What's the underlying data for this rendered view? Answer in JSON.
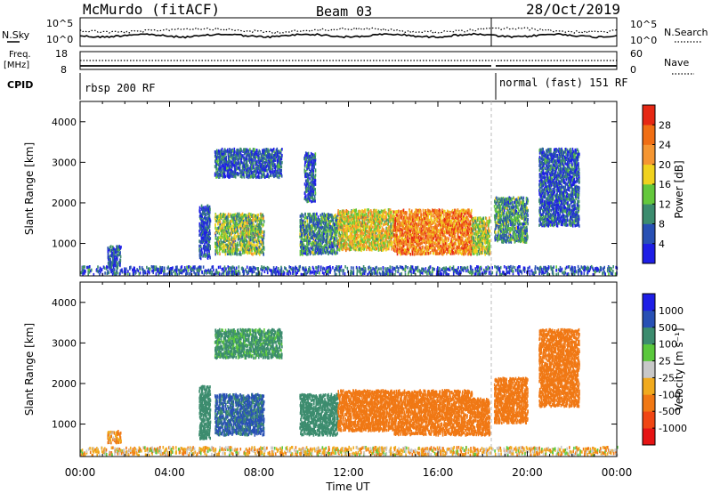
{
  "header": {
    "station": "McMurdo (fitACF)",
    "beam": "Beam 03",
    "date": "28/Oct/2019"
  },
  "top_panel": {
    "n_sky_label": "N.Sky",
    "n_search_label": "N.Search",
    "left_ticks": [
      "10^5",
      "10^0"
    ],
    "right_ticks": [
      "10^5",
      "10^0"
    ],
    "freq_label": "Freq.",
    "freq_unit": "[MHz]",
    "freq_ticks": [
      "18",
      "8"
    ],
    "nave_label": "Nave",
    "nave_ticks": [
      "60",
      "0"
    ],
    "cpid_label": "CPID",
    "cpid_segments": [
      "rbsp 200 RF",
      "normal (fast) 151 RF"
    ]
  },
  "power_colorbar": {
    "label": "Power [dB]",
    "colors": [
      "#1e1ee6",
      "#2850b4",
      "#3c8c6e",
      "#64c83c",
      "#f0d21e",
      "#f59632",
      "#f06e14",
      "#e62814"
    ],
    "ticks": [
      "4",
      "8",
      "12",
      "16",
      "20",
      "24",
      "28"
    ]
  },
  "velocity_colorbar": {
    "label": "Velocity [m s⁻¹]",
    "colors": [
      "#e61414",
      "#f04614",
      "#f07814",
      "#f0aa1e",
      "#c8c8c8",
      "#5ac83c",
      "#3c8c6e",
      "#2850b4",
      "#1e1ee6"
    ],
    "ticks": [
      "-1000",
      "-500",
      "-100",
      "-25",
      "25",
      "100",
      "500",
      "1000"
    ]
  },
  "chart_data": [
    {
      "type": "heatmap",
      "title": "",
      "xlabel": "Time UT",
      "ylabel": "Slant Range [km]",
      "x_ticks": [
        "00:00",
        "04:00",
        "08:00",
        "12:00",
        "16:00",
        "20:00",
        "00:00"
      ],
      "y_ticks": [
        "1000",
        "2000",
        "3000",
        "4000"
      ],
      "xlim_hours": [
        0,
        24
      ],
      "ylim_km": [
        200,
        4500
      ],
      "quantity": "Power",
      "unit": "dB",
      "scatter_regions": [
        {
          "t_start": 1.2,
          "t_end": 1.8,
          "r_min": 400,
          "r_max": 900,
          "typical": 6
        },
        {
          "t_start": 5.3,
          "t_end": 5.8,
          "r_min": 600,
          "r_max": 1900,
          "typical": 5
        },
        {
          "t_start": 6.0,
          "t_end": 8.2,
          "r_min": 700,
          "r_max": 1700,
          "typical": 14
        },
        {
          "t_start": 6.0,
          "t_end": 9.0,
          "r_min": 2600,
          "r_max": 3300,
          "typical": 6
        },
        {
          "t_start": 9.8,
          "t_end": 11.5,
          "r_min": 700,
          "r_max": 1700,
          "typical": 10
        },
        {
          "t_start": 10.0,
          "t_end": 10.5,
          "r_min": 2000,
          "r_max": 3200,
          "typical": 6
        },
        {
          "t_start": 11.5,
          "t_end": 14.0,
          "r_min": 800,
          "r_max": 1800,
          "typical": 18
        },
        {
          "t_start": 14.0,
          "t_end": 17.5,
          "r_min": 700,
          "r_max": 1800,
          "typical": 24
        },
        {
          "t_start": 17.5,
          "t_end": 18.3,
          "r_min": 700,
          "r_max": 1600,
          "typical": 16
        },
        {
          "t_start": 18.5,
          "t_end": 20.0,
          "r_min": 1000,
          "r_max": 2100,
          "typical": 10
        },
        {
          "t_start": 20.5,
          "t_end": 22.3,
          "r_min": 1400,
          "r_max": 3300,
          "typical": 6
        },
        {
          "t_start": 0.0,
          "t_end": 24.0,
          "r_min": 200,
          "r_max": 400,
          "typical": 6
        }
      ]
    },
    {
      "type": "heatmap",
      "title": "",
      "xlabel": "Time UT",
      "ylabel": "Slant Range [km]",
      "x_ticks": [
        "00:00",
        "04:00",
        "08:00",
        "12:00",
        "16:00",
        "20:00",
        "00:00"
      ],
      "y_ticks": [
        "1000",
        "2000",
        "3000",
        "4000"
      ],
      "xlim_hours": [
        0,
        24
      ],
      "ylim_km": [
        200,
        4500
      ],
      "quantity": "Velocity",
      "unit": "m s⁻¹",
      "scatter_regions": [
        {
          "t_start": 1.2,
          "t_end": 1.8,
          "r_min": 500,
          "r_max": 800,
          "typical": -100
        },
        {
          "t_start": 5.3,
          "t_end": 5.8,
          "r_min": 600,
          "r_max": 1900,
          "typical": 300
        },
        {
          "t_start": 6.0,
          "t_end": 8.2,
          "r_min": 700,
          "r_max": 1700,
          "typical": 600
        },
        {
          "t_start": 6.0,
          "t_end": 9.0,
          "r_min": 2600,
          "r_max": 3300,
          "typical": 150
        },
        {
          "t_start": 9.8,
          "t_end": 11.5,
          "r_min": 700,
          "r_max": 1700,
          "typical": 200
        },
        {
          "t_start": 11.5,
          "t_end": 14.0,
          "r_min": 800,
          "r_max": 1800,
          "typical": -300
        },
        {
          "t_start": 14.0,
          "t_end": 17.5,
          "r_min": 700,
          "r_max": 1800,
          "typical": -300
        },
        {
          "t_start": 17.5,
          "t_end": 18.3,
          "r_min": 700,
          "r_max": 1600,
          "typical": -200
        },
        {
          "t_start": 18.5,
          "t_end": 20.0,
          "r_min": 1000,
          "r_max": 2100,
          "typical": -200
        },
        {
          "t_start": 20.5,
          "t_end": 22.3,
          "r_min": 1400,
          "r_max": 3300,
          "typical": -200
        },
        {
          "t_start": 0.0,
          "t_end": 24.0,
          "r_min": 200,
          "r_max": 400,
          "typical": -50
        }
      ]
    }
  ]
}
